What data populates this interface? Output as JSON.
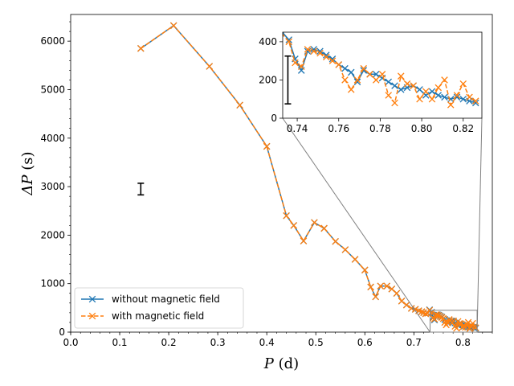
{
  "chart_data": {
    "type": "line",
    "title": "",
    "xlabel": "P (d)",
    "ylabel": "ΔP (s)",
    "xlabel_math": "P",
    "xlabel_unit": " (d)",
    "ylabel_math": "ΔP",
    "ylabel_unit": " (s)",
    "xlim": [
      0.0,
      0.86
    ],
    "ylim": [
      0,
      6550
    ],
    "xticks": [
      0.0,
      0.1,
      0.2,
      0.3,
      0.4,
      0.5,
      0.6,
      0.7,
      0.8
    ],
    "xtick_labels": [
      "0.0",
      "0.1",
      "0.2",
      "0.3",
      "0.4",
      "0.5",
      "0.6",
      "0.7",
      "0.8"
    ],
    "yticks": [
      0,
      1000,
      2000,
      3000,
      4000,
      5000,
      6000
    ],
    "ytick_labels": [
      "0",
      "1000",
      "2000",
      "3000",
      "4000",
      "5000",
      "6000"
    ],
    "legend_position": "lower-left",
    "series": [
      {
        "name": "without magnetic field",
        "color": "#1f77b4",
        "linestyle": "solid",
        "x": [
          0.143,
          0.21,
          0.283,
          0.345,
          0.4,
          0.44,
          0.455,
          0.475,
          0.497,
          0.517,
          0.54,
          0.56,
          0.58,
          0.6,
          0.612,
          0.622,
          0.632,
          0.645,
          0.655,
          0.665,
          0.675,
          0.685,
          0.695,
          0.703,
          0.71,
          0.716,
          0.72,
          0.724,
          0.728,
          0.732,
          0.736,
          0.739,
          0.742,
          0.745,
          0.748,
          0.751,
          0.754,
          0.757,
          0.76,
          0.763,
          0.766,
          0.769,
          0.772,
          0.775,
          0.778,
          0.781,
          0.784,
          0.787,
          0.79,
          0.793,
          0.796,
          0.799,
          0.802,
          0.805,
          0.808,
          0.811,
          0.814,
          0.817,
          0.82,
          0.823,
          0.826
        ],
        "values": [
          5850,
          6320,
          5480,
          4680,
          3830,
          2400,
          2200,
          1880,
          2260,
          2140,
          1870,
          1700,
          1500,
          1280,
          930,
          730,
          950,
          950,
          890,
          800,
          640,
          560,
          490,
          470,
          440,
          420,
          400,
          380,
          390,
          460,
          410,
          310,
          250,
          350,
          360,
          350,
          330,
          310,
          280,
          260,
          240,
          190,
          250,
          230,
          230,
          210,
          190,
          170,
          150,
          160,
          170,
          150,
          120,
          140,
          120,
          110,
          100,
          110,
          100,
          90,
          80
        ]
      },
      {
        "name": "with magnetic field",
        "color": "#ff7f0e",
        "linestyle": "dashed",
        "x": [
          0.143,
          0.21,
          0.283,
          0.345,
          0.4,
          0.44,
          0.455,
          0.475,
          0.497,
          0.517,
          0.54,
          0.56,
          0.58,
          0.6,
          0.612,
          0.622,
          0.632,
          0.645,
          0.655,
          0.665,
          0.675,
          0.685,
          0.695,
          0.703,
          0.71,
          0.716,
          0.72,
          0.724,
          0.728,
          0.732,
          0.736,
          0.739,
          0.742,
          0.745,
          0.748,
          0.751,
          0.754,
          0.757,
          0.76,
          0.763,
          0.766,
          0.769,
          0.772,
          0.775,
          0.778,
          0.781,
          0.784,
          0.787,
          0.79,
          0.793,
          0.796,
          0.799,
          0.802,
          0.805,
          0.808,
          0.811,
          0.814,
          0.817,
          0.82,
          0.823,
          0.826
        ],
        "values": [
          5850,
          6320,
          5480,
          4680,
          3830,
          2400,
          2200,
          1880,
          2260,
          2140,
          1870,
          1700,
          1500,
          1280,
          930,
          730,
          950,
          950,
          890,
          800,
          640,
          560,
          490,
          470,
          440,
          420,
          400,
          380,
          390,
          450,
          400,
          290,
          270,
          360,
          350,
          340,
          320,
          300,
          280,
          200,
          150,
          200,
          260,
          230,
          200,
          230,
          120,
          80,
          220,
          180,
          170,
          100,
          140,
          100,
          160,
          200,
          70,
          120,
          180,
          110,
          90
        ]
      }
    ],
    "errorbar_main": {
      "x": 0.143,
      "y": 2950,
      "yerr": 120
    },
    "inset": {
      "xlim": [
        0.733,
        0.829
      ],
      "ylim": [
        0,
        450
      ],
      "xticks": [
        0.74,
        0.76,
        0.78,
        0.8,
        0.82
      ],
      "xtick_labels": [
        "0.74",
        "0.76",
        "0.78",
        "0.80",
        "0.82"
      ],
      "yticks": [
        0,
        200,
        400
      ],
      "ytick_labels": [
        "0",
        "200",
        "400"
      ],
      "errorbar": {
        "x": 0.7355,
        "y": 200,
        "yerr": 125
      }
    }
  }
}
